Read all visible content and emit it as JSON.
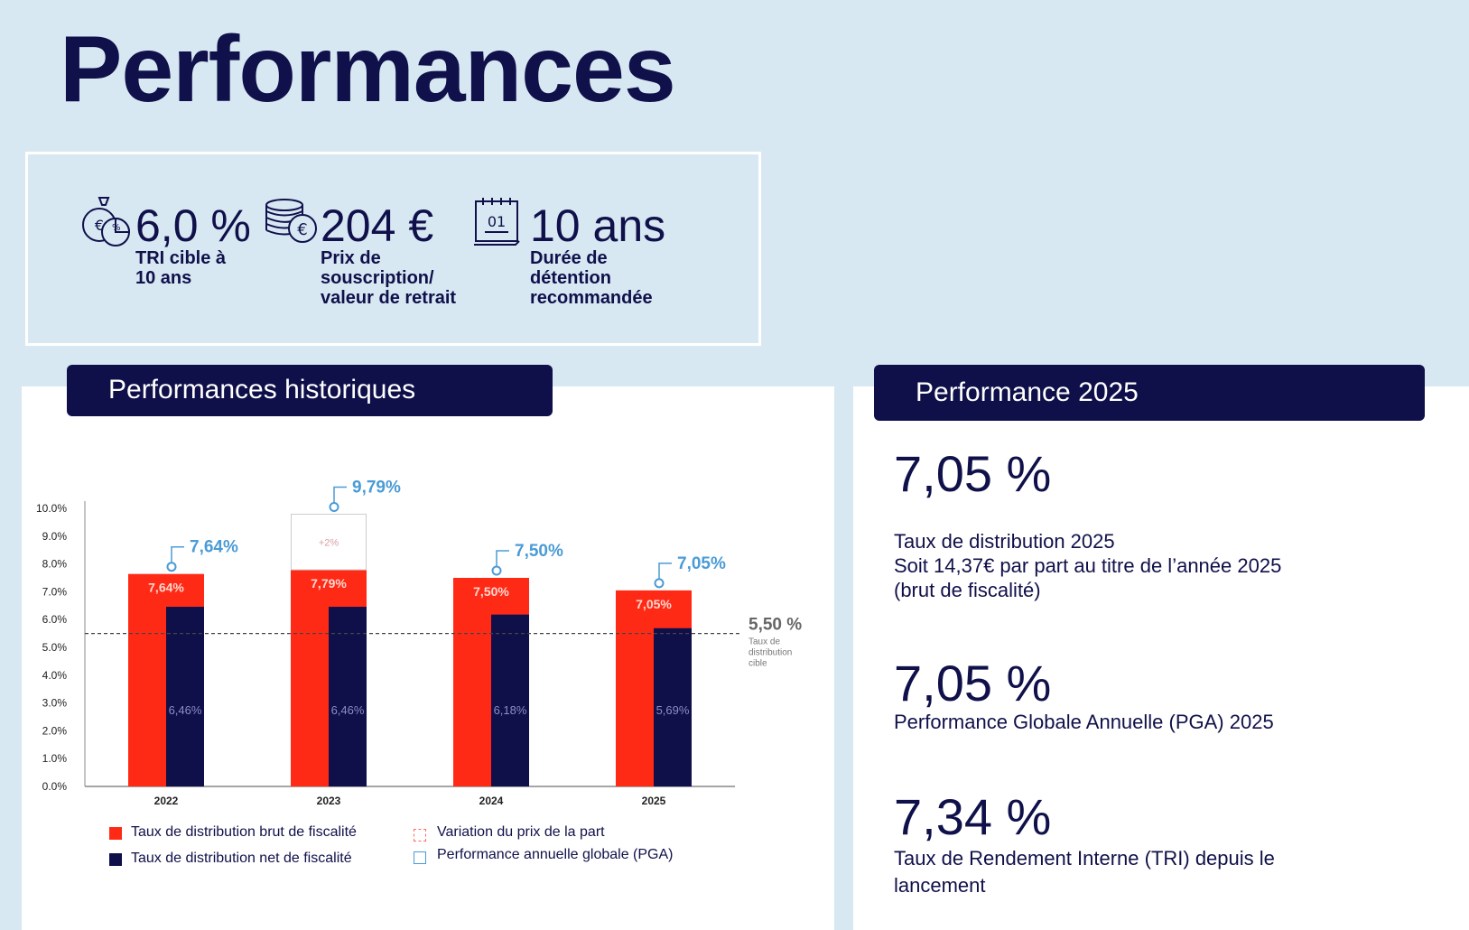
{
  "page": {
    "title": "Performances"
  },
  "kpis": [
    {
      "icon": "money-bag-euro-icon",
      "value": "6,0 %",
      "label": "TRI cible à\n10 ans"
    },
    {
      "icon": "euro-coins-icon",
      "value": "204 €",
      "label": "Prix de\nsouscription/\nvaleur de retrait"
    },
    {
      "icon": "calendar-icon",
      "icon_text": "01",
      "value": "10 ans",
      "label": "Durée de\ndétention\nrecommandée"
    }
  ],
  "historical": {
    "header": "Performances historiques",
    "legend": [
      {
        "label": "Taux de distribution brut de fiscalité"
      },
      {
        "label": "Taux de distribution net de fiscalité"
      },
      {
        "label": "Variation du prix de la part"
      },
      {
        "label": "Performance annuelle globale (PGA)"
      }
    ]
  },
  "perf2025": {
    "header": "Performance 2025",
    "items": [
      {
        "value": "7,05 %",
        "text": "Taux de distribution 2025\nSoit 14,37€ par part au titre de l’année 2025\n(brut de fiscalité)"
      },
      {
        "value": "7,05 %",
        "text": "Performance Globale Annuelle (PGA) 2025"
      },
      {
        "value": "7,34 %",
        "text": "Taux de Rendement Interne (TRI) depuis le\nlancement"
      }
    ]
  },
  "chart_data": {
    "type": "bar",
    "title": "Performances historiques",
    "categories": [
      "2022",
      "2023",
      "2024",
      "2025"
    ],
    "series": [
      {
        "name": "Taux de distribution brut de fiscalité",
        "values": [
          7.64,
          7.79,
          7.5,
          7.05
        ],
        "labels": [
          "7,64%",
          "7,79%",
          "7,50%",
          "7,05%"
        ]
      },
      {
        "name": "Taux de distribution net de fiscalité",
        "values": [
          6.46,
          6.46,
          6.18,
          5.69
        ],
        "labels": [
          "6,46%",
          "6,46%",
          "6,18%",
          "5,69%"
        ]
      },
      {
        "name": "Variation du prix de la part",
        "values": [
          0,
          2,
          0,
          0
        ],
        "labels": [
          "",
          "+2%",
          "",
          ""
        ]
      }
    ],
    "pga": {
      "values": [
        7.64,
        9.79,
        7.5,
        7.05
      ],
      "labels": [
        "7,64%",
        "9,79%",
        "7,50%",
        "7,05%"
      ]
    },
    "target_line": {
      "value": 5.5,
      "label": "5,50 %",
      "note": "Taux de\ndistribution\ncible"
    },
    "ylim": [
      0,
      10
    ],
    "yticks": [
      "0.0%",
      "1.0%",
      "2.0%",
      "3.0%",
      "4.0%",
      "5.0%",
      "6.0%",
      "7.0%",
      "8.0%",
      "9.0%",
      "10.0%"
    ],
    "colors": {
      "gross": "#ff2a16",
      "net": "#0f0f4a",
      "variation_border": "#ff6b5e",
      "pga": "#4a9bd6",
      "target": "#555555"
    }
  }
}
